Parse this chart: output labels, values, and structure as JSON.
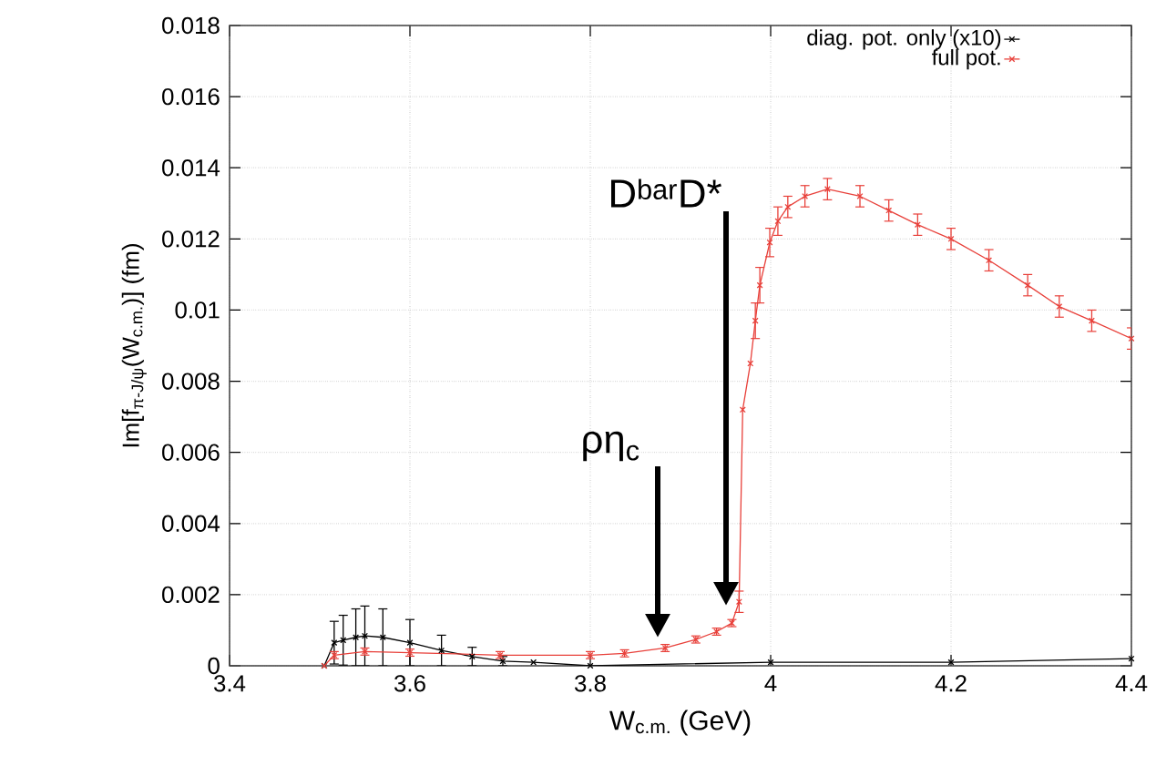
{
  "chart_data": {
    "type": "line",
    "xlabel": "W$_{c.m.}$ (GeV)",
    "ylabel": "Im[f$_{π-J/ψ}$(W$_{c.m.}$)] (fm)",
    "xlim": [
      3.4,
      4.4
    ],
    "ylim": [
      0,
      0.018
    ],
    "xticks": [
      3.4,
      3.6,
      3.8,
      4,
      4.2,
      4.4
    ],
    "yticks": [
      0,
      0.002,
      0.004,
      0.006,
      0.008,
      0.01,
      0.012,
      0.014,
      0.016,
      0.018
    ],
    "grid": true,
    "legend": "top right",
    "marker": "cross",
    "series": [
      {
        "name": "diag. pot. only (x10)",
        "color": "#000000",
        "x": [
          3.505,
          3.516,
          3.526,
          3.54,
          3.55,
          3.57,
          3.6,
          3.635,
          3.669,
          3.703,
          3.737,
          3.8,
          4.0,
          4.2,
          4.4
        ],
        "values": [
          0,
          0.00065,
          0.00072,
          0.0008,
          0.00084,
          0.0008,
          0.00065,
          0.00043,
          0.00026,
          0.00013,
          0.0001,
          0,
          0.0001,
          0.0001,
          0.0002
        ],
        "errors": [
          null,
          0.0006,
          0.0007,
          0.0008,
          0.00084,
          0.0008,
          0.00065,
          0.00043,
          0.00026,
          0.00013,
          null,
          null,
          null,
          null,
          null
        ]
      },
      {
        "name": "full pot.",
        "color": "#e8403a",
        "x": [
          3.505,
          3.516,
          3.55,
          3.6,
          3.7,
          3.8,
          3.838,
          3.883,
          3.917,
          3.94,
          3.957,
          3.965,
          3.969,
          3.9775,
          3.983,
          3.988,
          3.999,
          4.008,
          4.019,
          4.038,
          4.063,
          4.099,
          4.131,
          4.163,
          4.2,
          4.242,
          4.285,
          4.32,
          4.356,
          4.4
        ],
        "values": [
          0,
          0.0003,
          0.0004,
          0.00037,
          0.0003,
          0.0003,
          0.00035,
          0.0005,
          0.00074,
          0.00096,
          0.0012,
          0.0018,
          0.0072,
          0.0085,
          0.0097,
          0.0107,
          0.0119,
          0.0125,
          0.0129,
          0.0132,
          0.0134,
          0.0132,
          0.0128,
          0.0124,
          0.012,
          0.0114,
          0.0107,
          0.0101,
          0.0097,
          0.0092
        ],
        "errors": [
          null,
          0.0001,
          0.0001,
          0.0001,
          0.0001,
          0.0001,
          0.0001,
          0.0001,
          0.0001,
          0.0001,
          0.0001,
          0.0003,
          null,
          null,
          0.0005,
          0.0005,
          0.0004,
          0.0004,
          0.0003,
          0.0003,
          0.0003,
          0.0003,
          0.0003,
          0.0003,
          0.0003,
          0.0003,
          0.0003,
          0.0003,
          0.0003,
          0.0003
        ]
      }
    ],
    "annotations": [
      "ρη$_{c}$",
      "D$^{bar}$D*"
    ]
  }
}
